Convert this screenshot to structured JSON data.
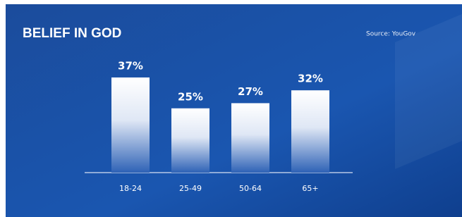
{
  "chart_data": {
    "type": "bar",
    "title": "BELIEF IN GOD",
    "subtitle": "Source: YouGov",
    "categories": [
      "18-24",
      "25-49",
      "50-64",
      "65+"
    ],
    "values": [
      37,
      25,
      27,
      32
    ],
    "value_labels": [
      "37%",
      "25%",
      "27%",
      "32%"
    ]
  }
}
